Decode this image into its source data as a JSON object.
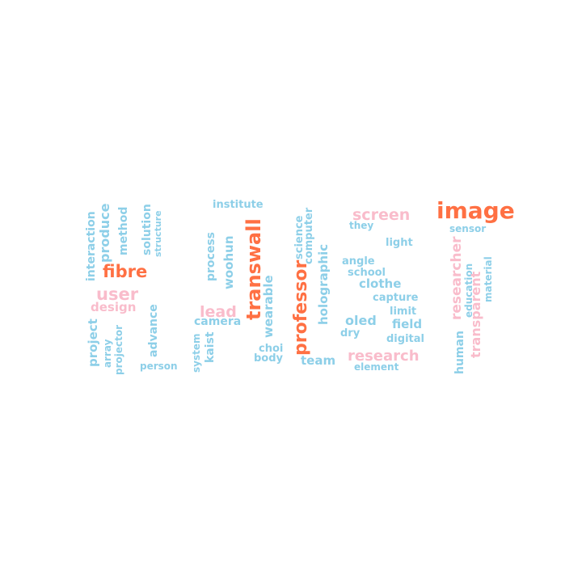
{
  "palette": {
    "orange": "#ff7043",
    "pink": "#f9bccb",
    "blue": "#8dcfe8"
  },
  "words": [
    {
      "id": "image",
      "text": "image",
      "color": "orange"
    },
    {
      "id": "screen",
      "text": "screen",
      "color": "pink"
    },
    {
      "id": "they",
      "text": "they",
      "color": "blue"
    },
    {
      "id": "sensor",
      "text": "sensor",
      "color": "blue"
    },
    {
      "id": "light",
      "text": "light",
      "color": "blue"
    },
    {
      "id": "angle",
      "text": "angle",
      "color": "blue"
    },
    {
      "id": "school",
      "text": "school",
      "color": "blue"
    },
    {
      "id": "clothe",
      "text": "clothe",
      "color": "blue"
    },
    {
      "id": "capture",
      "text": "capture",
      "color": "blue"
    },
    {
      "id": "limit",
      "text": "limit",
      "color": "blue"
    },
    {
      "id": "oled",
      "text": "oled",
      "color": "blue"
    },
    {
      "id": "field",
      "text": "field",
      "color": "blue"
    },
    {
      "id": "dry",
      "text": "dry",
      "color": "blue"
    },
    {
      "id": "digital",
      "text": "digital",
      "color": "blue"
    },
    {
      "id": "research",
      "text": "research",
      "color": "pink"
    },
    {
      "id": "element",
      "text": "element",
      "color": "blue"
    },
    {
      "id": "team",
      "text": "team",
      "color": "blue"
    },
    {
      "id": "institute",
      "text": "institute",
      "color": "blue"
    },
    {
      "id": "fibre",
      "text": "fibre",
      "color": "orange"
    },
    {
      "id": "user",
      "text": "user",
      "color": "pink"
    },
    {
      "id": "design",
      "text": "design",
      "color": "pink"
    },
    {
      "id": "lead",
      "text": "lead",
      "color": "pink"
    },
    {
      "id": "camera",
      "text": "camera",
      "color": "blue"
    },
    {
      "id": "person",
      "text": "person",
      "color": "blue"
    },
    {
      "id": "choi",
      "text": "choi",
      "color": "blue"
    },
    {
      "id": "body",
      "text": "body",
      "color": "blue"
    },
    {
      "id": "interaction",
      "text": "interaction",
      "color": "blue"
    },
    {
      "id": "produce",
      "text": "produce",
      "color": "blue"
    },
    {
      "id": "method",
      "text": "method",
      "color": "blue"
    },
    {
      "id": "solution",
      "text": "solution",
      "color": "blue"
    },
    {
      "id": "structure",
      "text": "structure",
      "color": "blue"
    },
    {
      "id": "project",
      "text": "project",
      "color": "blue"
    },
    {
      "id": "array",
      "text": "array",
      "color": "blue"
    },
    {
      "id": "projector",
      "text": "projector",
      "color": "blue"
    },
    {
      "id": "advance",
      "text": "advance",
      "color": "blue"
    },
    {
      "id": "system",
      "text": "system",
      "color": "blue"
    },
    {
      "id": "kaist",
      "text": "kaist",
      "color": "blue"
    },
    {
      "id": "process",
      "text": "process",
      "color": "blue"
    },
    {
      "id": "woohun",
      "text": "woohun",
      "color": "blue"
    },
    {
      "id": "transwall",
      "text": "transwall",
      "color": "orange"
    },
    {
      "id": "wearable",
      "text": "wearable",
      "color": "blue"
    },
    {
      "id": "professor",
      "text": "professor",
      "color": "orange"
    },
    {
      "id": "science",
      "text": "science",
      "color": "blue"
    },
    {
      "id": "computer",
      "text": "computer",
      "color": "blue"
    },
    {
      "id": "holographic",
      "text": "holographic",
      "color": "blue"
    },
    {
      "id": "researcher",
      "text": "researcher",
      "color": "pink"
    },
    {
      "id": "education",
      "text": "education",
      "color": "blue"
    },
    {
      "id": "human",
      "text": "human",
      "color": "blue"
    },
    {
      "id": "transparent",
      "text": "transparent",
      "color": "pink"
    },
    {
      "id": "material",
      "text": "material",
      "color": "blue"
    }
  ]
}
